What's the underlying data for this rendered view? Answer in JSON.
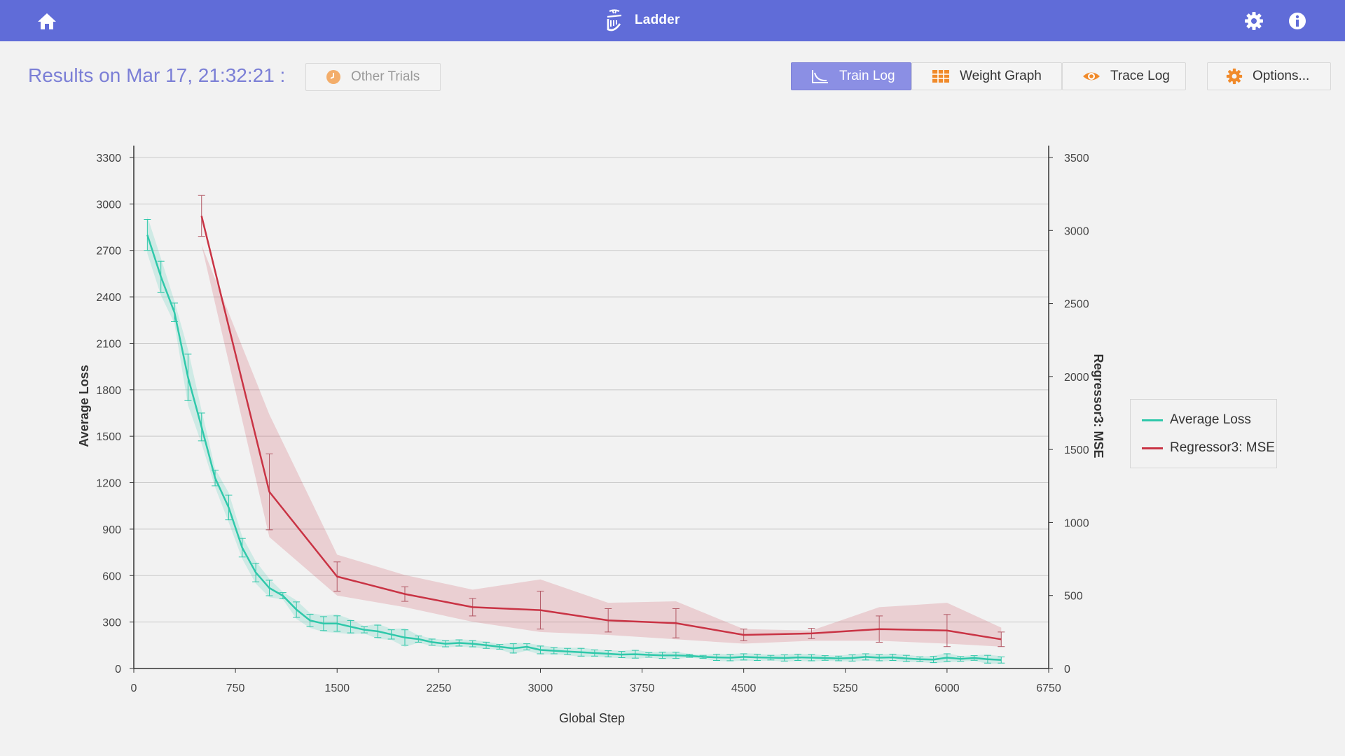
{
  "header": {
    "app_title": "Ladder",
    "icons": {
      "home": "home-icon",
      "logo": "ladder-logo-icon",
      "settings": "gear-icon",
      "info": "info-icon"
    }
  },
  "toolbar": {
    "results_title": "Results on Mar 17, 21:32:21 :",
    "other_trials_label": "Other Trials",
    "train_log_label": "Train Log",
    "weight_graph_label": "Weight Graph",
    "trace_log_label": "Trace Log",
    "options_label": "Options..."
  },
  "colors": {
    "topbar": "#606cd8",
    "accent": "#8b8fe4",
    "loss": "#2fc8aa",
    "mse": "#c93344",
    "orange": "#f08a2a"
  },
  "chart_data": {
    "type": "line",
    "xlabel": "Global Step",
    "xlim": [
      0,
      6750
    ],
    "xticks": [
      0,
      750,
      1500,
      2250,
      3000,
      3750,
      4500,
      5250,
      6000,
      6750
    ],
    "left_axis": {
      "label": "Average Loss",
      "ylim": [
        0,
        3300
      ],
      "ticks": [
        0,
        300,
        600,
        900,
        1200,
        1500,
        1800,
        2100,
        2400,
        2700,
        3000,
        3300
      ]
    },
    "right_axis": {
      "label": "Regressor3: MSE",
      "ylim": [
        0,
        3500
      ],
      "ticks": [
        0,
        500,
        1000,
        1500,
        2000,
        2500,
        3000,
        3500
      ]
    },
    "legend": {
      "position": "right",
      "entries": [
        "Average Loss",
        "Regressor3: MSE"
      ]
    },
    "grid": true,
    "series": [
      {
        "name": "Average Loss",
        "axis": "left",
        "color": "#2fc8aa",
        "x": [
          100,
          200,
          300,
          400,
          500,
          600,
          700,
          800,
          900,
          1000,
          1100,
          1200,
          1300,
          1400,
          1500,
          1600,
          1700,
          1800,
          1900,
          2000,
          2100,
          2200,
          2300,
          2400,
          2500,
          2600,
          2700,
          2800,
          2900,
          3000,
          3100,
          3200,
          3300,
          3400,
          3500,
          3600,
          3700,
          3800,
          3900,
          4000,
          4100,
          4200,
          4300,
          4400,
          4500,
          4600,
          4700,
          4800,
          4900,
          5000,
          5100,
          5200,
          5300,
          5400,
          5500,
          5600,
          5700,
          5800,
          5900,
          6000,
          6100,
          6200,
          6300,
          6400
        ],
        "y": [
          2800,
          2530,
          2300,
          1880,
          1560,
          1230,
          1040,
          780,
          620,
          520,
          470,
          380,
          310,
          290,
          290,
          270,
          250,
          240,
          220,
          200,
          190,
          170,
          160,
          165,
          160,
          150,
          140,
          130,
          140,
          120,
          115,
          110,
          105,
          100,
          95,
          90,
          92,
          88,
          85,
          85,
          82,
          75,
          72,
          70,
          75,
          72,
          70,
          68,
          72,
          70,
          68,
          65,
          68,
          75,
          70,
          72,
          65,
          60,
          58,
          70,
          62,
          68,
          60,
          55
        ],
        "err": [
          100,
          100,
          60,
          150,
          90,
          50,
          80,
          60,
          60,
          50,
          20,
          50,
          40,
          45,
          50,
          40,
          20,
          40,
          30,
          50,
          20,
          20,
          20,
          20,
          20,
          20,
          15,
          30,
          20,
          25,
          20,
          20,
          25,
          20,
          20,
          20,
          25,
          15,
          20,
          20,
          10,
          10,
          20,
          20,
          20,
          20,
          15,
          20,
          20,
          20,
          15,
          15,
          20,
          20,
          20,
          20,
          20,
          15,
          20,
          25,
          15,
          15,
          25,
          20
        ]
      },
      {
        "name": "Regressor3: MSE",
        "axis": "right",
        "color": "#c93344",
        "x": [
          500,
          1000,
          1500,
          2000,
          2500,
          3000,
          3500,
          4000,
          4500,
          5000,
          5500,
          6000,
          6400
        ],
        "y": [
          3100,
          1210,
          630,
          510,
          420,
          400,
          330,
          310,
          230,
          240,
          270,
          260,
          200
        ],
        "err": [
          140,
          260,
          100,
          50,
          60,
          130,
          80,
          100,
          40,
          35,
          90,
          110,
          50
        ],
        "band_high": [
          2900,
          1740,
          780,
          640,
          540,
          610,
          450,
          460,
          270,
          260,
          420,
          450,
          280
        ],
        "band_low": [
          2900,
          900,
          500,
          420,
          320,
          250,
          230,
          200,
          170,
          190,
          190,
          170,
          150
        ]
      }
    ]
  }
}
